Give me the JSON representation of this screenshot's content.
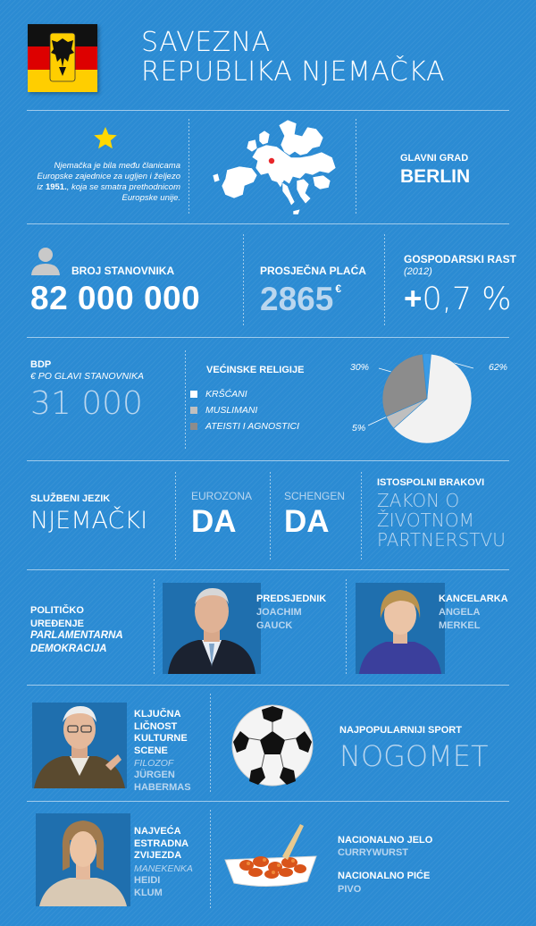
{
  "header": {
    "title_line1": "SAVEZNA",
    "title_line2": "REPUBLIKA NJEMAČKA"
  },
  "eu": {
    "text_part1": "Njemačka je bila među članicama Europske zajednice za ugljen i željezo iz",
    "year": "1951.",
    "text_part2": ", koja se smatra prethodnicom Europske unije."
  },
  "capital": {
    "label": "GLAVNI GRAD",
    "value": "BERLIN"
  },
  "population": {
    "label": "BROJ STANOVNIKA",
    "value": "82 000 000"
  },
  "salary": {
    "label": "PROSJEČNA PLAĆA",
    "value": "2865",
    "unit": "€"
  },
  "growth": {
    "label": "GOSPODARSKI RAST",
    "year": "(2012)",
    "sign": "+",
    "value": "0,7 %"
  },
  "gdp": {
    "label": "BDP",
    "sublabel": "€ PO GLAVI STANOVNIKA",
    "value": "31 000"
  },
  "religions": {
    "title": "VEĆINSKE RELIGIJE",
    "legend": [
      {
        "label": "KRŠĆANI",
        "color": "#ffffff"
      },
      {
        "label": "MUSLIMANI",
        "color": "#bfbfbf"
      },
      {
        "label": "ATEISTI I AGNOSTICI",
        "color": "#8c8c8c"
      }
    ],
    "pct_30": "30%",
    "pct_62": "62%",
    "pct_5": "5%"
  },
  "chart_data": {
    "type": "pie",
    "categories": [
      "KRŠĆANI",
      "MUSLIMANI",
      "ATEISTI I AGNOSTICI"
    ],
    "values": [
      62,
      5,
      30
    ],
    "colors": [
      "#f2f2f2",
      "#bfbfbf",
      "#8c8c8c"
    ]
  },
  "language": {
    "label": "SLUŽBENI JEZIK",
    "value": "NJEMAČKI"
  },
  "eurozone": {
    "label": "EUROZONA",
    "value": "DA"
  },
  "schengen": {
    "label": "SCHENGEN",
    "value": "DA"
  },
  "samesex": {
    "label": "ISTOSPOLNI BRAKOVI",
    "line1": "ZAKON O",
    "line2": "ŽIVOTNOM",
    "line3": "PARTNERSTVU"
  },
  "politics": {
    "label_line1": "POLITIČKO",
    "label_line2": "UREĐENJE",
    "value_line1": "PARLAMENTARNA",
    "value_line2": "DEMOKRACIJA"
  },
  "president": {
    "label": "PREDSJEDNIK",
    "name_line1": "JOACHIM",
    "name_line2": "GAUCK"
  },
  "chancellor": {
    "label": "KANCELARKA",
    "name_line1": "ANGELA",
    "name_line2": "MERKEL"
  },
  "culture": {
    "label_line1": "KLJUČNA",
    "label_line2": "LIČNOST",
    "label_line3": "KULTURNE",
    "label_line4": "SCENE",
    "role": "FILOZOF",
    "name_line1": "JÜRGEN",
    "name_line2": "HABERMAS"
  },
  "sport": {
    "label": "NAJPOPULARNIJI SPORT",
    "value": "NOGOMET"
  },
  "celebrity": {
    "label_line1": "NAJVEĆA",
    "label_line2": "ESTRADNA",
    "label_line3": "ZVIJEZDA",
    "role": "MANEKENKA",
    "name_line1": "HEIDI",
    "name_line2": "KLUM"
  },
  "food": {
    "label": "NACIONALNO JELO",
    "value": "CURRYWURST"
  },
  "drink": {
    "label": "NACIONALNO PIĆE",
    "value": "PIVO"
  }
}
